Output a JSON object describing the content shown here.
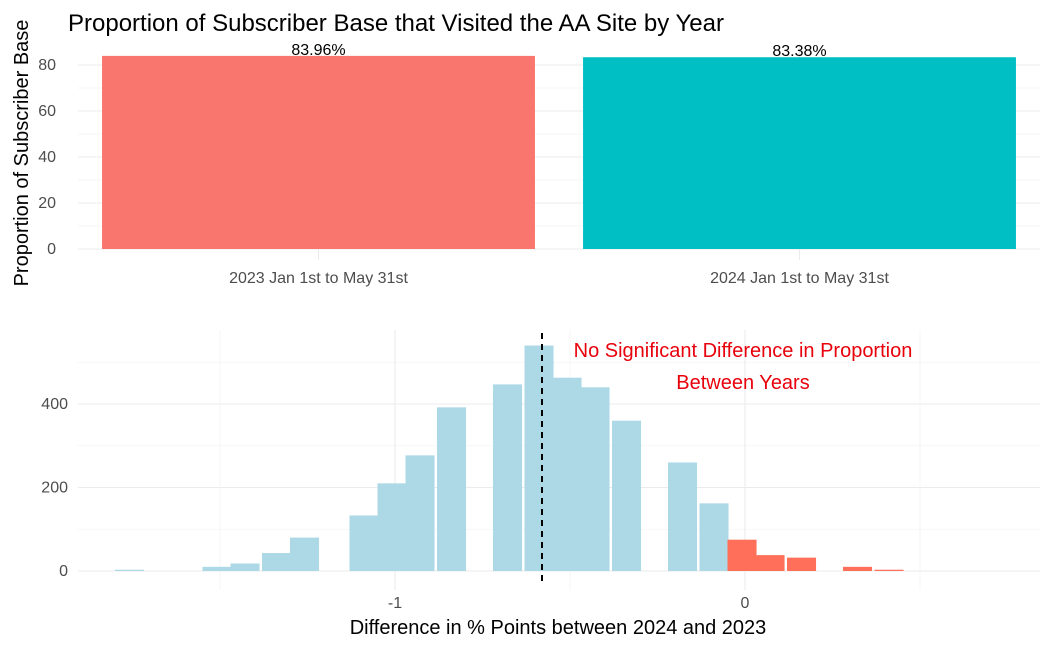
{
  "chart_data": [
    {
      "type": "bar",
      "title": "Proportion of Subscriber Base that Visited the AA Site by Year",
      "xlabel": "",
      "ylabel": "Proportion of Subscriber Base",
      "categories": [
        "2023 Jan 1st to May 31st",
        "2024 Jan 1st to May 31st"
      ],
      "values": [
        83.96,
        83.38
      ],
      "data_labels": [
        "83.96%",
        "83.38%"
      ],
      "colors": [
        "#f8766d",
        "#00bfc4"
      ],
      "ylim": [
        0,
        85
      ],
      "yticks": [
        0,
        20,
        40,
        60,
        80
      ],
      "grid": true,
      "legend": "none"
    },
    {
      "type": "bar",
      "subtype": "histogram",
      "title": "",
      "xlabel": "Difference in % Points between 2024 and 2023",
      "ylabel": "",
      "bin_width": 0.083,
      "bins": [
        {
          "start": -1.8,
          "count": 3,
          "highlight": false
        },
        {
          "start": -1.55,
          "count": 10,
          "highlight": false
        },
        {
          "start": -1.47,
          "count": 18,
          "highlight": false
        },
        {
          "start": -1.38,
          "count": 43,
          "highlight": false
        },
        {
          "start": -1.3,
          "count": 80,
          "highlight": false
        },
        {
          "start": -1.13,
          "count": 133,
          "highlight": false
        },
        {
          "start": -1.05,
          "count": 210,
          "highlight": false
        },
        {
          "start": -0.97,
          "count": 277,
          "highlight": false
        },
        {
          "start": -0.88,
          "count": 392,
          "highlight": false
        },
        {
          "start": -0.72,
          "count": 447,
          "highlight": false
        },
        {
          "start": -0.63,
          "count": 540,
          "highlight": false
        },
        {
          "start": -0.55,
          "count": 463,
          "highlight": false
        },
        {
          "start": -0.47,
          "count": 440,
          "highlight": false
        },
        {
          "start": -0.38,
          "count": 360,
          "highlight": false
        },
        {
          "start": -0.22,
          "count": 260,
          "highlight": false
        },
        {
          "start": -0.13,
          "count": 162,
          "highlight": false
        },
        {
          "start": -0.05,
          "count": 75,
          "highlight": true
        },
        {
          "start": 0.03,
          "count": 38,
          "highlight": true
        },
        {
          "start": 0.12,
          "count": 32,
          "highlight": true
        },
        {
          "start": 0.28,
          "count": 10,
          "highlight": true
        },
        {
          "start": 0.37,
          "count": 3,
          "highlight": true
        }
      ],
      "colors": {
        "main": "#add8e6",
        "highlight": "#ff6f59",
        "annotation": "#e8000b"
      },
      "xlim": [
        -1.92,
        0.66
      ],
      "xticks": [
        -1,
        0
      ],
      "ylim": [
        -25,
        560
      ],
      "yticks": [
        0,
        200,
        400
      ],
      "reference_line": -0.58,
      "annotation": [
        "No Significant Difference in Proportion",
        "Between Years"
      ],
      "grid": true,
      "legend": "none"
    }
  ]
}
